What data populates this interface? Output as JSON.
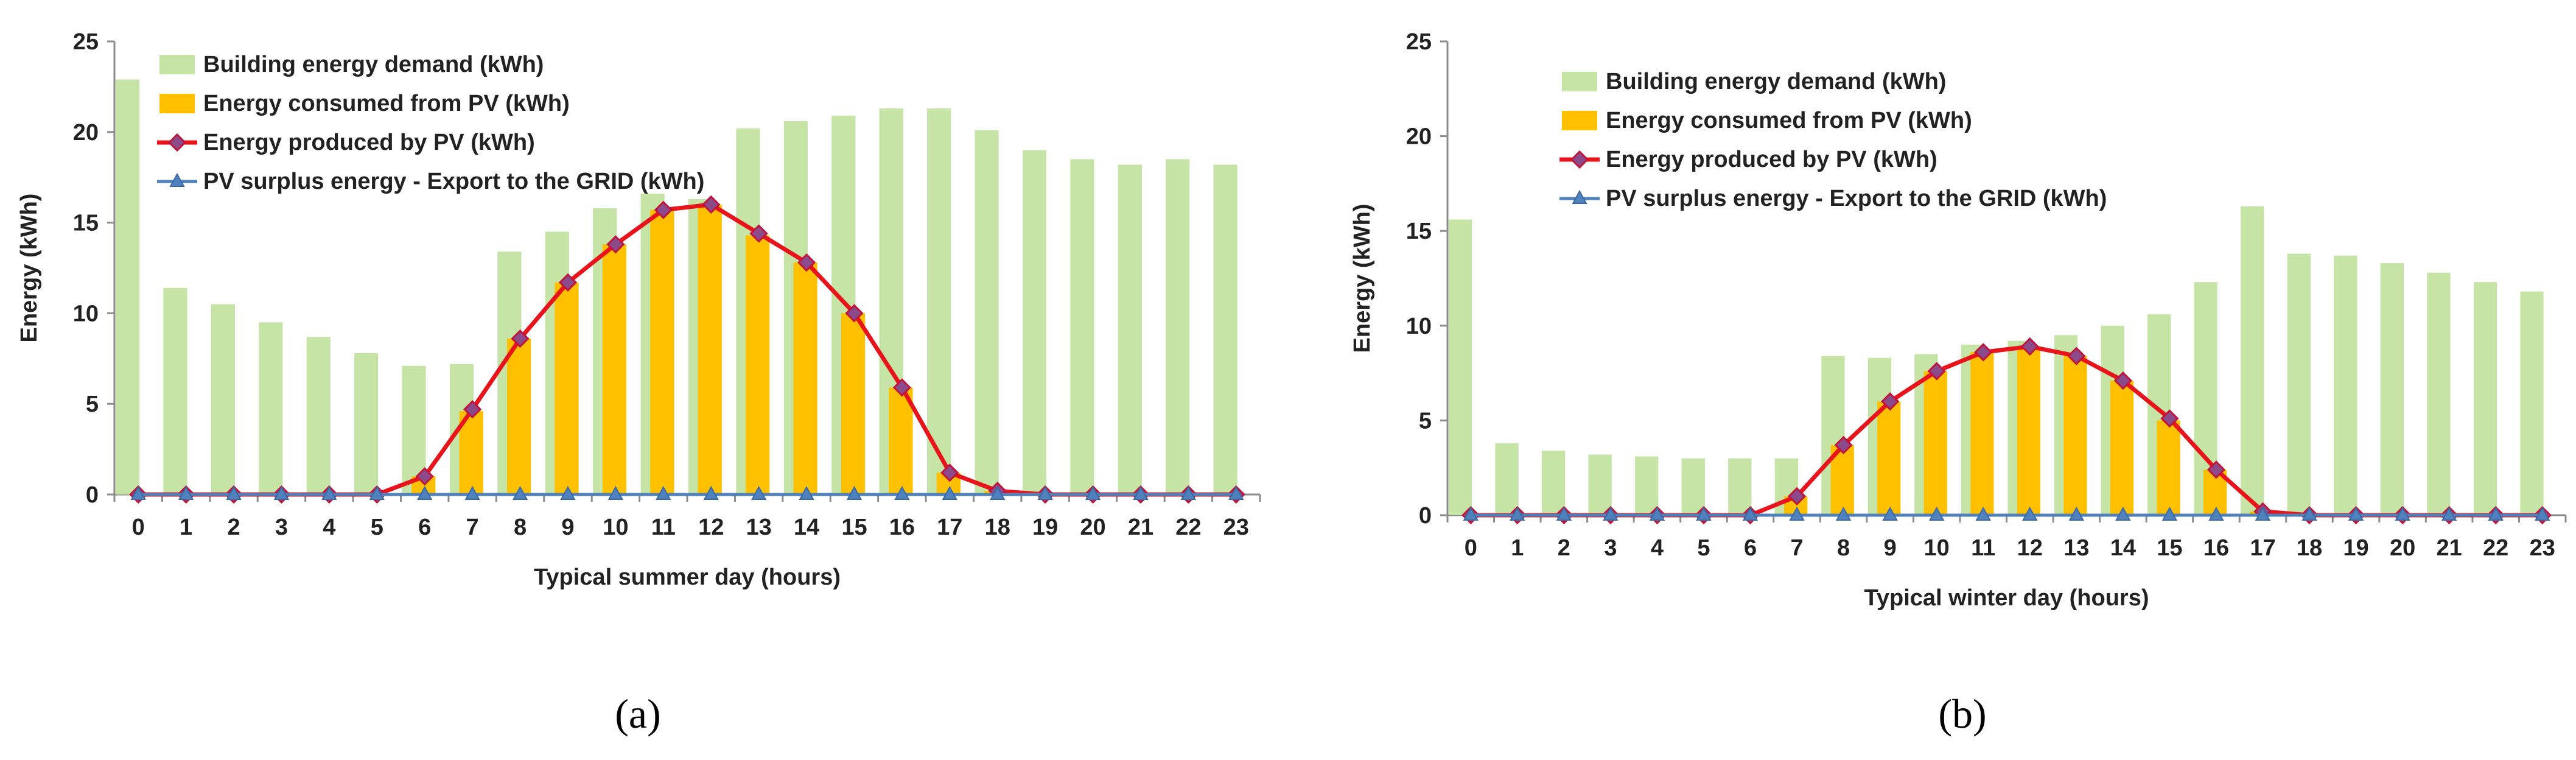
{
  "chart_data": [
    {
      "type": "bar",
      "panel": "a",
      "xlabel": "Typical summer day (hours)",
      "ylabel": "Energy (kWh)",
      "ylim": [
        0,
        25
      ],
      "yticks": [
        0,
        5,
        10,
        15,
        20,
        25
      ],
      "categories": [
        "0",
        "1",
        "2",
        "3",
        "4",
        "5",
        "6",
        "7",
        "8",
        "9",
        "10",
        "11",
        "12",
        "13",
        "14",
        "15",
        "16",
        "17",
        "18",
        "19",
        "20",
        "21",
        "22",
        "23"
      ],
      "series": [
        {
          "name": "Building energy demand (kWh)",
          "kind": "bar",
          "color": "#c5e4a5",
          "values": [
            22.9,
            11.4,
            10.5,
            9.5,
            8.7,
            7.8,
            7.1,
            7.2,
            13.4,
            14.5,
            15.8,
            16.6,
            16.3,
            20.2,
            20.6,
            20.9,
            21.3,
            21.3,
            20.1,
            19.0,
            18.5,
            18.2,
            18.5,
            18.2
          ]
        },
        {
          "name": "Energy consumed from PV (kWh)",
          "kind": "bar",
          "color": "#ffc000",
          "values": [
            0,
            0,
            0,
            0,
            0,
            0,
            1.0,
            4.6,
            8.6,
            11.7,
            13.8,
            15.7,
            16.0,
            14.3,
            12.8,
            10.0,
            5.9,
            1.2,
            0.2,
            0,
            0,
            0,
            0,
            0
          ]
        },
        {
          "name": "Energy produced by PV (kWh)",
          "kind": "line",
          "color": "#e8141c",
          "marker": "diamond",
          "values": [
            0,
            0,
            0,
            0,
            0,
            0,
            1.0,
            4.7,
            8.6,
            11.7,
            13.8,
            15.7,
            16.0,
            14.4,
            12.8,
            10.0,
            5.9,
            1.2,
            0.2,
            0,
            0,
            0,
            0,
            0
          ]
        },
        {
          "name": "PV surplus energy - Export to the GRID (kWh)",
          "kind": "line",
          "color": "#4f81bd",
          "marker": "triangle",
          "values": [
            0,
            0,
            0,
            0,
            0,
            0,
            0,
            0,
            0,
            0,
            0,
            0,
            0,
            0,
            0,
            0,
            0,
            0,
            0,
            0,
            0,
            0,
            0,
            0
          ]
        }
      ]
    },
    {
      "type": "bar",
      "panel": "b",
      "xlabel": "Typical winter day (hours)",
      "ylabel": "Energy (kWh)",
      "ylim": [
        0,
        25
      ],
      "yticks": [
        0,
        5,
        10,
        15,
        20,
        25
      ],
      "categories": [
        "0",
        "1",
        "2",
        "3",
        "4",
        "5",
        "6",
        "7",
        "8",
        "9",
        "10",
        "11",
        "12",
        "13",
        "14",
        "15",
        "16",
        "17",
        "18",
        "19",
        "20",
        "21",
        "22",
        "23"
      ],
      "series": [
        {
          "name": "Building energy demand (kWh)",
          "kind": "bar",
          "color": "#c5e4a5",
          "values": [
            15.6,
            3.8,
            3.4,
            3.2,
            3.1,
            3.0,
            3.0,
            3.0,
            8.4,
            8.3,
            8.5,
            9.0,
            9.2,
            9.5,
            10.0,
            10.6,
            12.3,
            16.3,
            13.8,
            13.7,
            13.3,
            12.8,
            12.3,
            11.8
          ]
        },
        {
          "name": "Energy consumed from PV (kWh)",
          "kind": "bar",
          "color": "#ffc000",
          "values": [
            0,
            0,
            0,
            0,
            0,
            0,
            0,
            1.0,
            3.7,
            6.0,
            7.6,
            8.6,
            8.9,
            8.4,
            7.1,
            5.0,
            2.4,
            0.2,
            0,
            0,
            0,
            0,
            0,
            0
          ]
        },
        {
          "name": "Energy produced by PV (kWh)",
          "kind": "line",
          "color": "#e8141c",
          "marker": "diamond",
          "values": [
            0,
            0,
            0,
            0,
            0,
            0,
            0,
            1.0,
            3.7,
            6.0,
            7.6,
            8.6,
            8.9,
            8.4,
            7.1,
            5.1,
            2.4,
            0.2,
            0,
            0,
            0,
            0,
            0,
            0
          ]
        },
        {
          "name": "PV surplus energy - Export to the GRID (kWh)",
          "kind": "line",
          "color": "#4f81bd",
          "marker": "triangle",
          "values": [
            0,
            0,
            0,
            0,
            0,
            0,
            0,
            0,
            0,
            0,
            0,
            0,
            0,
            0,
            0,
            0,
            0,
            0,
            0,
            0,
            0,
            0,
            0,
            0
          ]
        }
      ]
    }
  ],
  "captions": [
    "(a)",
    "(b)"
  ]
}
